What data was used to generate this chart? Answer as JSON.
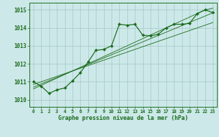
{
  "xlabel": "Graphe pression niveau de la mer (hPa)",
  "bg_color": "#cce8e8",
  "grid_color": "#aacccc",
  "line_color": "#1a6b1a",
  "marker_color": "#1a6b1a",
  "ylim": [
    1009.6,
    1015.4
  ],
  "xlim": [
    -0.5,
    23.5
  ],
  "yticks": [
    1010,
    1011,
    1012,
    1013,
    1014,
    1015
  ],
  "xtick_labels": [
    "0",
    "1",
    "2",
    "3",
    "4",
    "5",
    "6",
    "7",
    "8",
    "9",
    "10",
    "11",
    "12",
    "13",
    "14",
    "15",
    "16",
    "17",
    "18",
    "19",
    "20",
    "21",
    "22",
    "23"
  ],
  "main_series": [
    1011.0,
    1010.75,
    1010.35,
    1010.55,
    1010.65,
    1011.05,
    1011.5,
    1012.1,
    1012.75,
    1012.8,
    1013.0,
    1014.2,
    1014.15,
    1014.2,
    1013.6,
    1013.55,
    1013.65,
    1014.0,
    1014.2,
    1014.2,
    1014.25,
    1014.8,
    1015.0,
    1014.85
  ],
  "trend_series": [
    [
      1010.85,
      1011.0,
      1011.15,
      1011.3,
      1011.45,
      1011.6,
      1011.75,
      1011.9,
      1012.05,
      1012.2,
      1012.35,
      1012.5,
      1012.65,
      1012.8,
      1012.95,
      1013.1,
      1013.25,
      1013.4,
      1013.55,
      1013.7,
      1013.85,
      1014.0,
      1014.15,
      1014.3
    ],
    [
      1010.7,
      1010.88,
      1011.06,
      1011.24,
      1011.42,
      1011.6,
      1011.78,
      1011.96,
      1012.14,
      1012.32,
      1012.5,
      1012.68,
      1012.86,
      1013.04,
      1013.22,
      1013.4,
      1013.58,
      1013.76,
      1013.94,
      1014.12,
      1014.3,
      1014.48,
      1014.66,
      1014.84
    ],
    [
      1010.6,
      1010.8,
      1011.0,
      1011.2,
      1011.4,
      1011.6,
      1011.8,
      1012.0,
      1012.2,
      1012.4,
      1012.6,
      1012.8,
      1013.0,
      1013.2,
      1013.4,
      1013.6,
      1013.8,
      1014.0,
      1014.2,
      1014.4,
      1014.6,
      1014.8,
      1015.0,
      1015.1
    ]
  ]
}
